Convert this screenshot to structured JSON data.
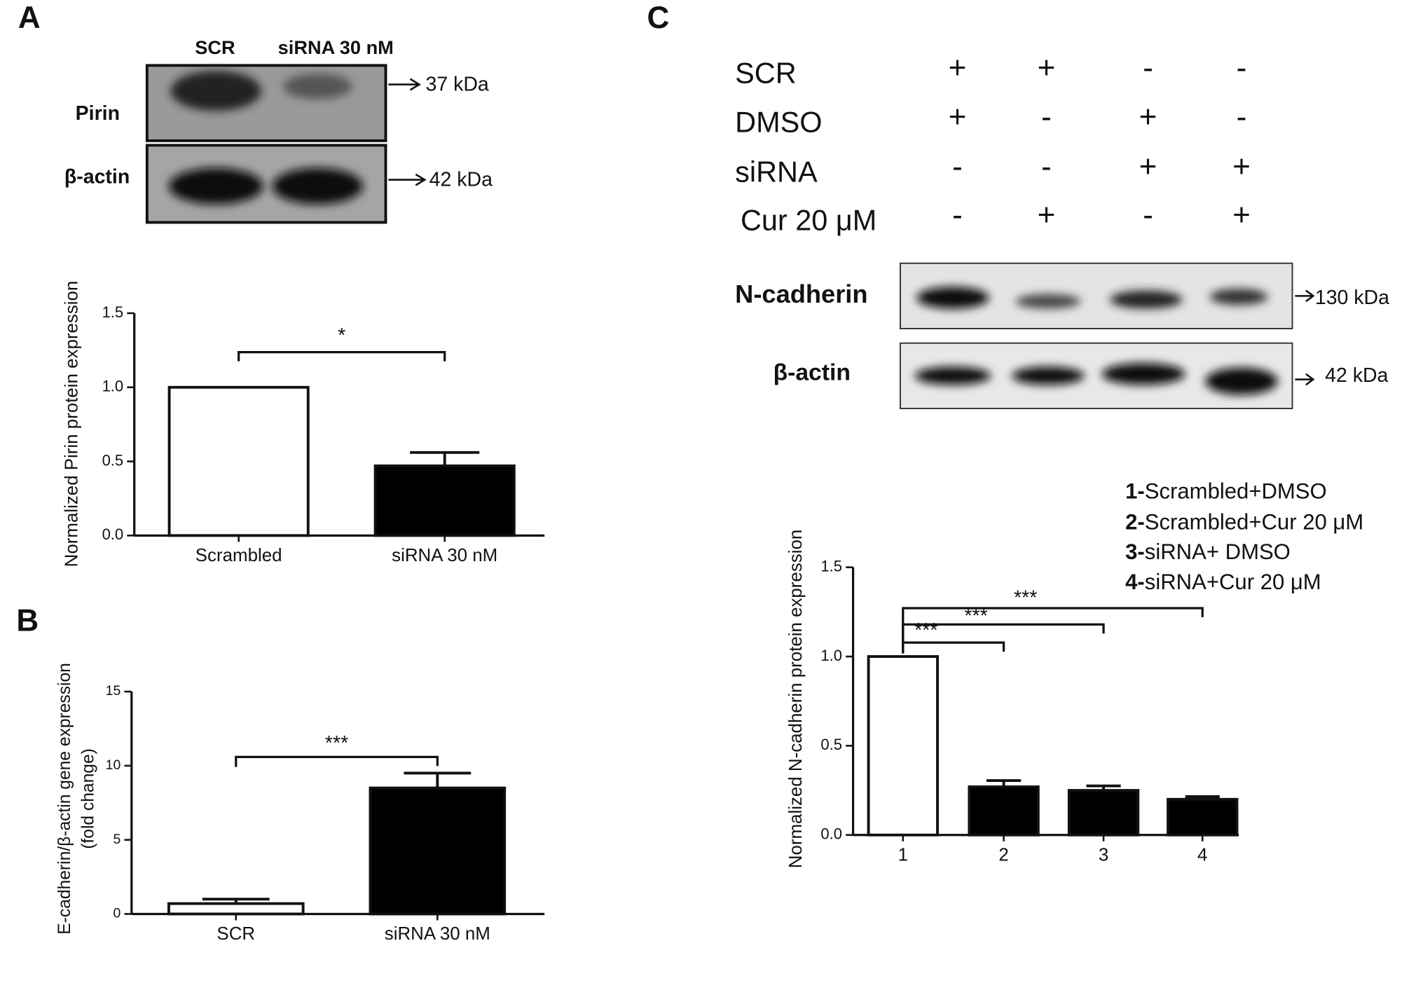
{
  "panel_labels": [
    "A",
    "B",
    "C"
  ],
  "blot_a": {
    "columns": [
      "SCR",
      "siRNA 30 nM"
    ],
    "rows": [
      {
        "label": "Pirin",
        "size": "37 kDa"
      },
      {
        "label": "β-actin",
        "size": "42 kDa"
      }
    ]
  },
  "blot_c": {
    "conditions": [
      {
        "label": "SCR",
        "marks": [
          "+",
          "+",
          "-",
          "-"
        ]
      },
      {
        "label": "DMSO",
        "marks": [
          "+",
          "-",
          "+",
          "-"
        ]
      },
      {
        "label": "siRNA",
        "marks": [
          "-",
          "-",
          "+",
          "+"
        ]
      },
      {
        "label": "Cur 20 μM",
        "marks": [
          "-",
          "+",
          "-",
          "+"
        ]
      }
    ],
    "rows": [
      {
        "label": "N-cadherin",
        "size": "130 kDa"
      },
      {
        "label": "β-actin",
        "size": "42 kDa"
      }
    ]
  },
  "chart_data": [
    {
      "type": "bar",
      "ylabel": [
        "Normalized Pirin protein expression"
      ],
      "categories": [
        "Scrambled",
        "siRNA 30 nM"
      ],
      "values": [
        1.0,
        0.47
      ],
      "errors": [
        0,
        0.09
      ],
      "colors": [
        "#ffffff",
        "#000000"
      ],
      "ylim": [
        0,
        1.5
      ],
      "yticks": [
        {
          "value": 0,
          "label": "0.0"
        },
        {
          "value": 0.5,
          "label": "0.5"
        },
        {
          "value": 1,
          "label": "1.0"
        },
        {
          "value": 1.5,
          "label": "1.5"
        }
      ],
      "significance": [
        "*"
      ]
    },
    {
      "type": "bar",
      "ylabel": [
        "E-cadherin/β-actin gene expression",
        "(fold change)"
      ],
      "categories": [
        "SCR",
        "siRNA 30 nM"
      ],
      "values": [
        0.7,
        8.5
      ],
      "errors": [
        0.3,
        1.0
      ],
      "colors": [
        "#ffffff",
        "#000000"
      ],
      "ylim": [
        0,
        15
      ],
      "yticks": [
        0,
        5,
        10,
        15
      ],
      "significance": [
        "***"
      ]
    },
    {
      "type": "bar",
      "ylabel": [
        "Normalized N-cadherin protein expression"
      ],
      "categories": [
        "1",
        "2",
        "3",
        "4"
      ],
      "values": [
        1.0,
        0.27,
        0.25,
        0.2
      ],
      "errors": [
        0,
        0.035,
        0.025,
        0.015
      ],
      "colors": [
        "#ffffff",
        "#000000",
        "#000000",
        "#000000"
      ],
      "ylim": [
        0,
        1.5
      ],
      "yticks": [
        {
          "value": 0,
          "label": "0.0"
        },
        {
          "value": 0.5,
          "label": "0.5"
        },
        {
          "value": 1,
          "label": "1.0"
        },
        {
          "value": 1.5,
          "label": "1.5"
        }
      ],
      "significance": [
        "***",
        "***",
        "***"
      ],
      "legend": [
        {
          "key": "1-",
          "text": "Scrambled+DMSO"
        },
        {
          "key": "2-",
          "text": "Scrambled+Cur 20 μM"
        },
        {
          "key": "3-",
          "text": "siRNA+ DMSO"
        },
        {
          "key": "4-",
          "text": "siRNA+Cur 20 μM"
        }
      ]
    }
  ]
}
